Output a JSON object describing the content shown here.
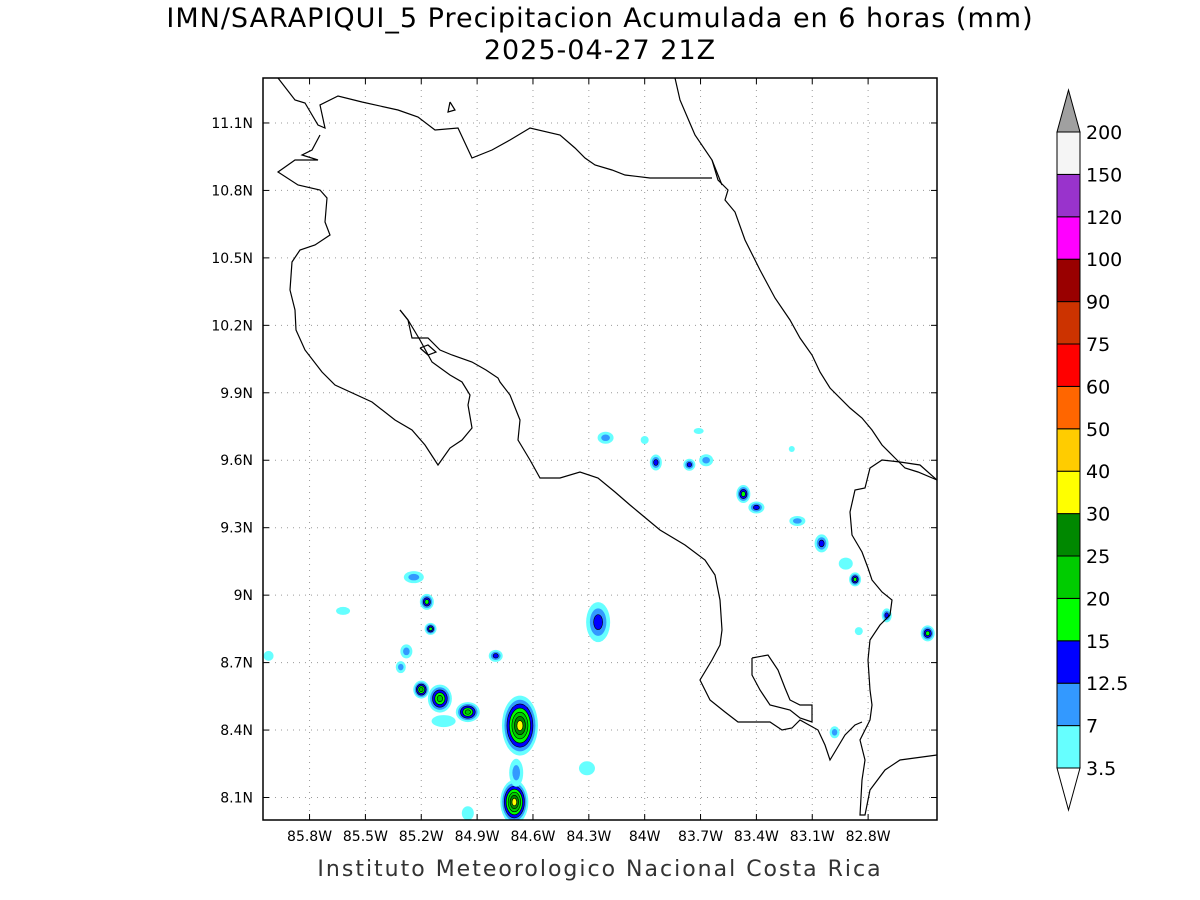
{
  "title": {
    "line1": "IMN/SARAPIQUI_5 Precipitacion Acumulada en 6 horas (mm)",
    "line2": "2025-04-27 21Z"
  },
  "footer": "Instituto Meteorologico Nacional Costa Rica",
  "map": {
    "lon_range": [
      -86.05,
      -82.43
    ],
    "lat_range": [
      8.0,
      11.3
    ],
    "lon_ticks": [
      {
        "value": -85.8,
        "label": "85.8W"
      },
      {
        "value": -85.5,
        "label": "85.5W"
      },
      {
        "value": -85.2,
        "label": "85.2W"
      },
      {
        "value": -84.9,
        "label": "84.9W"
      },
      {
        "value": -84.6,
        "label": "84.6W"
      },
      {
        "value": -84.3,
        "label": "84.3W"
      },
      {
        "value": -84.0,
        "label": "84W"
      },
      {
        "value": -83.7,
        "label": "83.7W"
      },
      {
        "value": -83.4,
        "label": "83.4W"
      },
      {
        "value": -83.1,
        "label": "83.1W"
      },
      {
        "value": -82.8,
        "label": "82.8W"
      }
    ],
    "lat_ticks": [
      {
        "value": 8.1,
        "label": "8.1N"
      },
      {
        "value": 8.4,
        "label": "8.4N"
      },
      {
        "value": 8.7,
        "label": "8.7N"
      },
      {
        "value": 9.0,
        "label": "9N"
      },
      {
        "value": 9.3,
        "label": "9.3N"
      },
      {
        "value": 9.6,
        "label": "9.6N"
      },
      {
        "value": 9.9,
        "label": "9.9N"
      },
      {
        "value": 10.2,
        "label": "10.2N"
      },
      {
        "value": 10.5,
        "label": "10.5N"
      },
      {
        "value": 10.8,
        "label": "10.8N"
      },
      {
        "value": 11.1,
        "label": "11.1N"
      }
    ],
    "grid": true
  },
  "colorbar": {
    "levels": [
      {
        "label": "3.5",
        "color": "#66ffff"
      },
      {
        "label": "7",
        "color": "#3399ff"
      },
      {
        "label": "12.5",
        "color": "#0000ff"
      },
      {
        "label": "15",
        "color": "#00ff00"
      },
      {
        "label": "20",
        "color": "#00cc00"
      },
      {
        "label": "25",
        "color": "#008800"
      },
      {
        "label": "30",
        "color": "#ffff00"
      },
      {
        "label": "40",
        "color": "#ffcc00"
      },
      {
        "label": "50",
        "color": "#ff6600"
      },
      {
        "label": "60",
        "color": "#ff0000"
      },
      {
        "label": "75",
        "color": "#cc3300"
      },
      {
        "label": "90",
        "color": "#990000"
      },
      {
        "label": "100",
        "color": "#ff00ff"
      },
      {
        "label": "120",
        "color": "#9933cc"
      },
      {
        "label": "150",
        "color": "#f5f5f5"
      },
      {
        "label": "200",
        "color": ""
      }
    ],
    "top_arrow_color": "#a0a0a0",
    "bottom_arrow_color": "#ffffff"
  },
  "precip_cells": [
    {
      "lon": -84.67,
      "lat": 8.42,
      "level": 6,
      "rx": 18,
      "ry": 30
    },
    {
      "lon": -84.7,
      "lat": 8.08,
      "level": 6,
      "rx": 14,
      "ry": 22
    },
    {
      "lon": -85.1,
      "lat": 8.54,
      "level": 4,
      "rx": 12,
      "ry": 14
    },
    {
      "lon": -84.95,
      "lat": 8.48,
      "level": 4,
      "rx": 12,
      "ry": 10
    },
    {
      "lon": -85.2,
      "lat": 8.58,
      "level": 4,
      "rx": 8,
      "ry": 9
    },
    {
      "lon": -85.17,
      "lat": 8.97,
      "level": 3,
      "rx": 7,
      "ry": 8
    },
    {
      "lon": -85.15,
      "lat": 8.85,
      "level": 3,
      "rx": 6,
      "ry": 6
    },
    {
      "lon": -84.8,
      "lat": 8.73,
      "level": 2,
      "rx": 7,
      "ry": 6
    },
    {
      "lon": -84.25,
      "lat": 8.88,
      "level": 2,
      "rx": 12,
      "ry": 20
    },
    {
      "lon": -83.47,
      "lat": 9.45,
      "level": 3,
      "rx": 7,
      "ry": 9
    },
    {
      "lon": -83.4,
      "lat": 9.39,
      "level": 2,
      "rx": 8,
      "ry": 6
    },
    {
      "lon": -83.05,
      "lat": 9.23,
      "level": 2,
      "rx": 7,
      "ry": 9
    },
    {
      "lon": -82.87,
      "lat": 9.07,
      "level": 3,
      "rx": 6,
      "ry": 7
    },
    {
      "lon": -82.48,
      "lat": 8.83,
      "level": 3,
      "rx": 7,
      "ry": 8
    },
    {
      "lon": -82.7,
      "lat": 8.91,
      "level": 2,
      "rx": 5,
      "ry": 7
    },
    {
      "lon": -83.94,
      "lat": 9.59,
      "level": 2,
      "rx": 6,
      "ry": 8
    },
    {
      "lon": -83.76,
      "lat": 9.58,
      "level": 2,
      "rx": 6,
      "ry": 6
    },
    {
      "lon": -84.21,
      "lat": 9.7,
      "level": 1,
      "rx": 8,
      "ry": 6
    },
    {
      "lon": -83.67,
      "lat": 9.6,
      "level": 1,
      "rx": 7,
      "ry": 6
    },
    {
      "lon": -83.18,
      "lat": 9.33,
      "level": 1,
      "rx": 8,
      "ry": 5
    },
    {
      "lon": -84.31,
      "lat": 8.23,
      "level": 0,
      "rx": 8,
      "ry": 7
    },
    {
      "lon": -85.24,
      "lat": 9.08,
      "level": 1,
      "rx": 10,
      "ry": 6
    },
    {
      "lon": -85.28,
      "lat": 8.75,
      "level": 1,
      "rx": 6,
      "ry": 7
    },
    {
      "lon": -85.31,
      "lat": 8.68,
      "level": 1,
      "rx": 5,
      "ry": 6
    },
    {
      "lon": -86.02,
      "lat": 8.73,
      "level": 0,
      "rx": 5,
      "ry": 5
    },
    {
      "lon": -85.62,
      "lat": 8.93,
      "level": 0,
      "rx": 7,
      "ry": 4
    },
    {
      "lon": -82.85,
      "lat": 8.84,
      "level": 0,
      "rx": 4,
      "ry": 4
    },
    {
      "lon": -82.98,
      "lat": 8.39,
      "level": 1,
      "rx": 5,
      "ry": 6
    },
    {
      "lon": -82.92,
      "lat": 9.14,
      "level": 0,
      "rx": 7,
      "ry": 6
    },
    {
      "lon": -84.0,
      "lat": 9.69,
      "level": 0,
      "rx": 4,
      "ry": 4
    },
    {
      "lon": -83.71,
      "lat": 9.73,
      "level": 0,
      "rx": 5,
      "ry": 3
    },
    {
      "lon": -83.21,
      "lat": 9.65,
      "level": 0,
      "rx": 3,
      "ry": 3
    },
    {
      "lon": -84.95,
      "lat": 8.03,
      "level": 0,
      "rx": 6,
      "ry": 7
    },
    {
      "lon": -84.69,
      "lat": 8.21,
      "level": 1,
      "rx": 7,
      "ry": 14
    },
    {
      "lon": -85.08,
      "lat": 8.44,
      "level": 0,
      "rx": 12,
      "ry": 6
    }
  ]
}
